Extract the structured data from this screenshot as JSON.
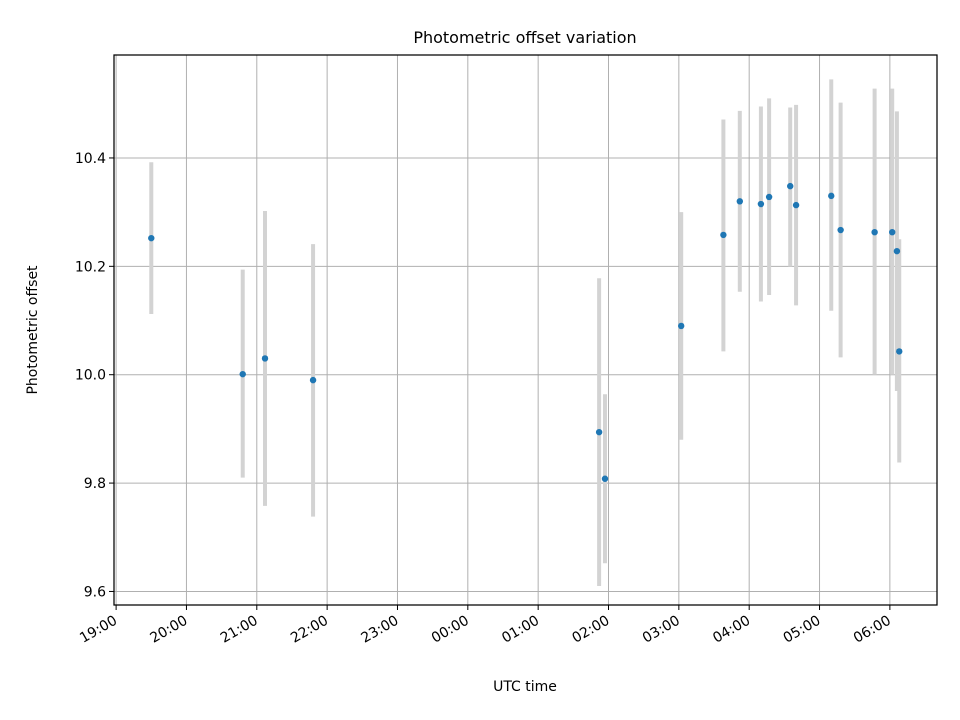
{
  "chart_data": {
    "type": "scatter",
    "title": "Photometric offset variation",
    "xlabel": "UTC time",
    "ylabel": "Photometric offset",
    "grid": true,
    "x_ticks": [
      "19:00",
      "20:00",
      "21:00",
      "22:00",
      "23:00",
      "00:00",
      "01:00",
      "02:00",
      "03:00",
      "04:00",
      "05:00",
      "06:00"
    ],
    "x_tick_hours": [
      19,
      20,
      21,
      22,
      23,
      24,
      25,
      26,
      27,
      28,
      29,
      30
    ],
    "xlim_hours": [
      18.97,
      30.67
    ],
    "y_ticks": [
      "9.6",
      "9.8",
      "10.0",
      "10.2",
      "10.4"
    ],
    "y_tick_values": [
      9.6,
      9.8,
      10.0,
      10.2,
      10.4
    ],
    "ylim": [
      9.575,
      10.59
    ],
    "colors": {
      "point": "#1f77b4",
      "errorbar": "#d3d3d3",
      "grid": "#b0b0b0"
    },
    "points": [
      {
        "time": "19:30",
        "y": 10.252,
        "ylow": 10.112,
        "yhigh": 10.392
      },
      {
        "time": "20:48",
        "y": 10.001,
        "ylow": 9.81,
        "yhigh": 10.194
      },
      {
        "time": "21:07",
        "y": 10.03,
        "ylow": 9.758,
        "yhigh": 10.302
      },
      {
        "time": "21:48",
        "y": 9.99,
        "ylow": 9.738,
        "yhigh": 10.241
      },
      {
        "time": "01:52",
        "y": 9.894,
        "ylow": 9.61,
        "yhigh": 10.178
      },
      {
        "time": "01:57",
        "y": 9.808,
        "ylow": 9.652,
        "yhigh": 9.964
      },
      {
        "time": "03:02",
        "y": 10.09,
        "ylow": 9.88,
        "yhigh": 10.3
      },
      {
        "time": "03:38",
        "y": 10.258,
        "ylow": 10.043,
        "yhigh": 10.471
      },
      {
        "time": "03:52",
        "y": 10.32,
        "ylow": 10.153,
        "yhigh": 10.487
      },
      {
        "time": "04:10",
        "y": 10.315,
        "ylow": 10.135,
        "yhigh": 10.495
      },
      {
        "time": "04:17",
        "y": 10.328,
        "ylow": 10.147,
        "yhigh": 10.51
      },
      {
        "time": "04:35",
        "y": 10.348,
        "ylow": 10.2,
        "yhigh": 10.493
      },
      {
        "time": "04:40",
        "y": 10.313,
        "ylow": 10.128,
        "yhigh": 10.498
      },
      {
        "time": "05:10",
        "y": 10.33,
        "ylow": 10.118,
        "yhigh": 10.545
      },
      {
        "time": "05:18",
        "y": 10.267,
        "ylow": 10.032,
        "yhigh": 10.502
      },
      {
        "time": "05:47",
        "y": 10.263,
        "ylow": 10.0,
        "yhigh": 10.528
      },
      {
        "time": "06:02",
        "y": 10.263,
        "ylow": 10.0,
        "yhigh": 10.528
      },
      {
        "time": "06:06",
        "y": 10.228,
        "ylow": 9.97,
        "yhigh": 10.486
      },
      {
        "time": "06:08",
        "y": 10.043,
        "ylow": 9.838,
        "yhigh": 10.25
      }
    ]
  }
}
